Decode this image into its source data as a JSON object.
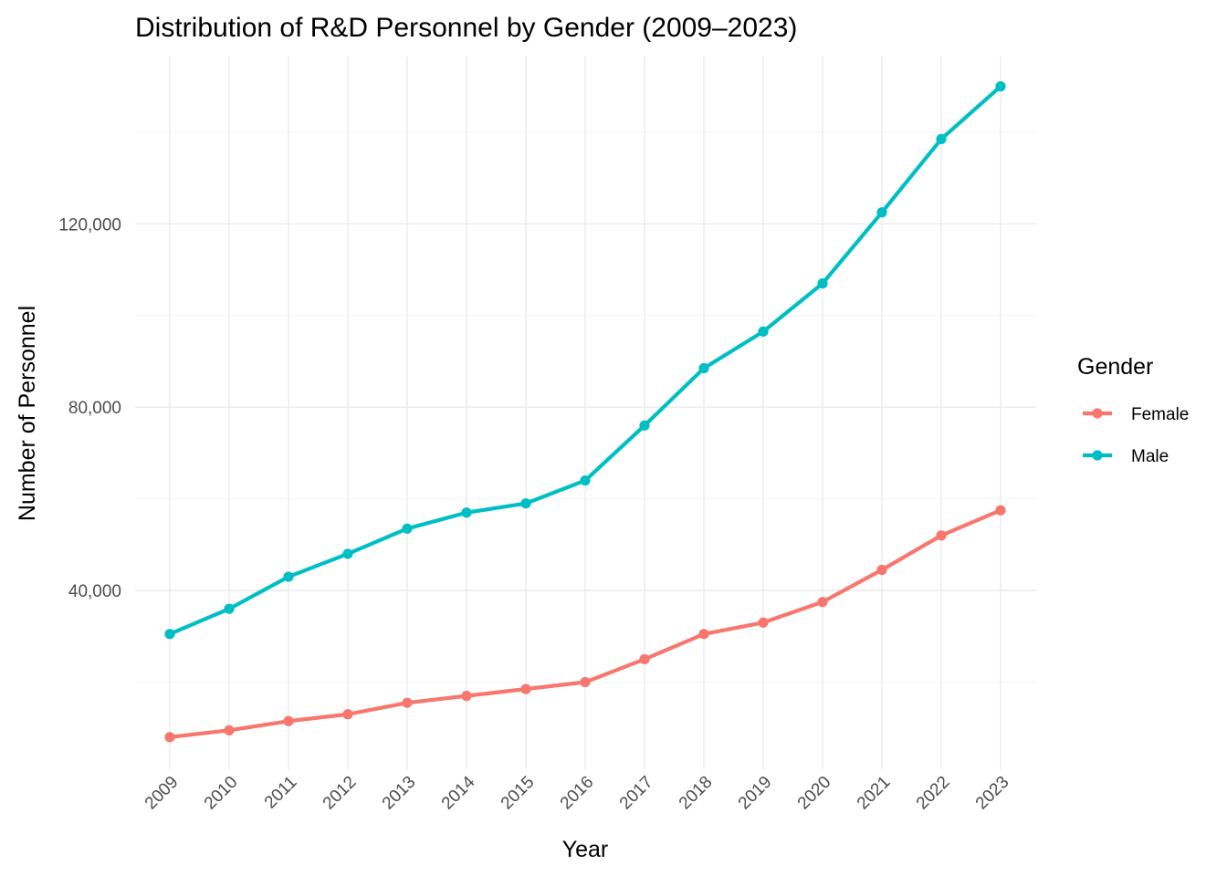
{
  "chart_data": {
    "type": "line",
    "title": "Distribution of R&D Personnel by Gender (2009–2023)",
    "xlabel": "Year",
    "ylabel": "Number of Personnel",
    "x": [
      "2009",
      "2010",
      "2011",
      "2012",
      "2013",
      "2014",
      "2015",
      "2016",
      "2017",
      "2018",
      "2019",
      "2020",
      "2021",
      "2022",
      "2023"
    ],
    "y_ticks": [
      "40,000",
      "80,000",
      "120,000"
    ],
    "y_tick_values": [
      40000,
      80000,
      120000
    ],
    "ylim": [
      1000,
      156500
    ],
    "grid": true,
    "legend": {
      "title": "Gender",
      "placement": "right"
    },
    "series": [
      {
        "name": "Female",
        "color": "#F8766D",
        "values": [
          8000,
          9500,
          11500,
          13000,
          15500,
          17000,
          18500,
          20000,
          25000,
          30500,
          33000,
          37500,
          44500,
          52000,
          57500
        ]
      },
      {
        "name": "Male",
        "color": "#00BFC4",
        "values": [
          30500,
          36000,
          43000,
          48000,
          53500,
          57000,
          59000,
          64000,
          76000,
          88500,
          96500,
          107000,
          122500,
          138500,
          150000
        ]
      }
    ]
  }
}
